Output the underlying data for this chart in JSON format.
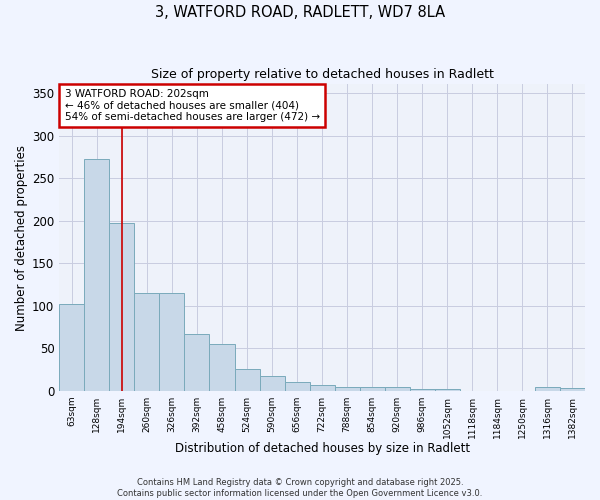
{
  "title_line1": "3, WATFORD ROAD, RADLETT, WD7 8LA",
  "title_line2": "Size of property relative to detached houses in Radlett",
  "xlabel": "Distribution of detached houses by size in Radlett",
  "ylabel": "Number of detached properties",
  "bar_color": "#c8d8e8",
  "bar_edge_color": "#7aaabb",
  "background_color": "#eef2fa",
  "grid_color": "#c8cce0",
  "annotation_box_color": "#cc0000",
  "vline_color": "#cc0000",
  "categories": [
    "63sqm",
    "128sqm",
    "194sqm",
    "260sqm",
    "326sqm",
    "392sqm",
    "458sqm",
    "524sqm",
    "590sqm",
    "656sqm",
    "722sqm",
    "788sqm",
    "854sqm",
    "920sqm",
    "986sqm",
    "1052sqm",
    "1118sqm",
    "1184sqm",
    "1250sqm",
    "1316sqm",
    "1382sqm"
  ],
  "values": [
    102,
    272,
    197,
    115,
    115,
    67,
    55,
    26,
    17,
    10,
    7,
    4,
    4,
    5,
    2,
    2,
    0,
    0,
    0,
    4,
    3
  ],
  "ylim": [
    0,
    360
  ],
  "yticks": [
    0,
    50,
    100,
    150,
    200,
    250,
    300,
    350
  ],
  "vline_pos": 2,
  "annotation_text": "3 WATFORD ROAD: 202sqm\n← 46% of detached houses are smaller (404)\n54% of semi-detached houses are larger (472) →",
  "footnote": "Contains HM Land Registry data © Crown copyright and database right 2025.\nContains public sector information licensed under the Open Government Licence v3.0.",
  "figsize": [
    6.0,
    5.0
  ],
  "dpi": 100
}
